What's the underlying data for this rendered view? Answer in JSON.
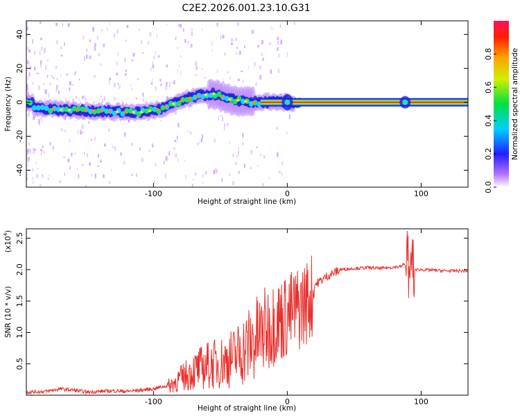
{
  "title": "C2E2.2026.001.23.10.G31",
  "chart_data": [
    {
      "type": "heatmap",
      "title": "C2E2.2026.001.23.10.G31",
      "xlabel": "Height of straight line (km)",
      "ylabel": "Frequency (Hz)",
      "xlim": [
        -195,
        135
      ],
      "ylim": [
        -50,
        48
      ],
      "xticks": [
        -100,
        0,
        100
      ],
      "yticks": [
        -40,
        -20,
        0,
        20,
        40
      ],
      "ridge": [
        {
          "x": -190,
          "y": -3
        },
        {
          "x": -170,
          "y": -4.5
        },
        {
          "x": -150,
          "y": -5
        },
        {
          "x": -130,
          "y": -5.5
        },
        {
          "x": -110,
          "y": -6
        },
        {
          "x": -95,
          "y": -4
        },
        {
          "x": -85,
          "y": -1
        },
        {
          "x": -75,
          "y": 2
        },
        {
          "x": -65,
          "y": 4
        },
        {
          "x": -55,
          "y": 5
        },
        {
          "x": -45,
          "y": 2
        },
        {
          "x": -35,
          "y": 1
        },
        {
          "x": -25,
          "y": 0
        },
        {
          "x": 0,
          "y": 0
        },
        {
          "x": 80,
          "y": 0
        },
        {
          "x": 135,
          "y": 0
        }
      ],
      "colorbar": {
        "label": "Normalized spectral amplitude",
        "ticks": [
          "0.0",
          "0.2",
          "0.4",
          "0.6",
          "0.8"
        ],
        "range": [
          0,
          1
        ]
      }
    },
    {
      "type": "line",
      "xlabel": "Height of straight line (km)",
      "ylabel": "SNR (10 * v/v)",
      "y_multiplier": "(x10",
      "y_multiplier_exp": "4",
      "y_multiplier_close": ")",
      "xlim": [
        -195,
        135
      ],
      "ylim": [
        0,
        2.65
      ],
      "xticks": [
        -100,
        0,
        100
      ],
      "yticks": [
        "0.5",
        "1.0",
        "1.5",
        "2.0",
        "2.5"
      ],
      "color": "#e8302c",
      "series": [
        {
          "name": "SNR",
          "x": [
            -195,
            -180,
            -170,
            -160,
            -150,
            -140,
            -130,
            -120,
            -110,
            -100,
            -90,
            -80,
            -70,
            -60,
            -50,
            -40,
            -30,
            -20,
            -10,
            0,
            10,
            20,
            30,
            40,
            50,
            60,
            70,
            80,
            85,
            88,
            90,
            92,
            95,
            100,
            110,
            120,
            135
          ],
          "y": [
            0.05,
            0.06,
            0.1,
            0.08,
            0.05,
            0.06,
            0.07,
            0.06,
            0.08,
            0.1,
            0.15,
            0.3,
            0.45,
            0.55,
            0.6,
            0.7,
            0.9,
            1.1,
            1.3,
            1.4,
            1.55,
            1.75,
            1.9,
            2.0,
            2.02,
            2.03,
            2.02,
            2.04,
            2.05,
            2.1,
            2.1,
            2.05,
            2.0,
            2.0,
            1.99,
            1.98,
            1.98
          ]
        }
      ]
    }
  ]
}
